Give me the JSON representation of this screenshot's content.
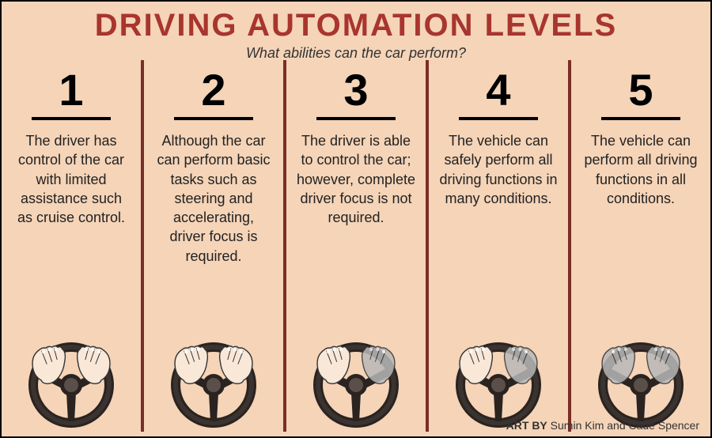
{
  "colors": {
    "background": "#f5d4b8",
    "title": "#a8352e",
    "divider": "#7a2e28",
    "text": "#222222",
    "wheel_dark": "#2a2320",
    "wheel_mid": "#3b3330",
    "wheel_light": "#5a4f49",
    "hand_skin": "#f9e8d8",
    "hand_line": "#333333",
    "hand_gray": "#b8b8b8"
  },
  "title": "DRIVING AUTOMATION LEVELS",
  "subtitle": "What abilities can the car perform?",
  "credit_label": "ART BY",
  "credit_names": "Sumin Kim and Cade Spencer",
  "levels": [
    {
      "num": "1",
      "desc": "The driver has control of the car with limited assistance such as cruise control.",
      "hands_faded": 0
    },
    {
      "num": "2",
      "desc": "Although the car can perform basic tasks such as steering and accelerating, driver focus is required.",
      "hands_faded": 0
    },
    {
      "num": "3",
      "desc": "The driver is able to control the car; however, complete driver focus is not required.",
      "hands_faded": 1
    },
    {
      "num": "4",
      "desc": "The vehicle can safely perform all driving functions in many conditions.",
      "hands_faded": 1
    },
    {
      "num": "5",
      "desc": "The vehicle can perform all driving functions in all conditions.",
      "hands_faded": 2
    }
  ]
}
